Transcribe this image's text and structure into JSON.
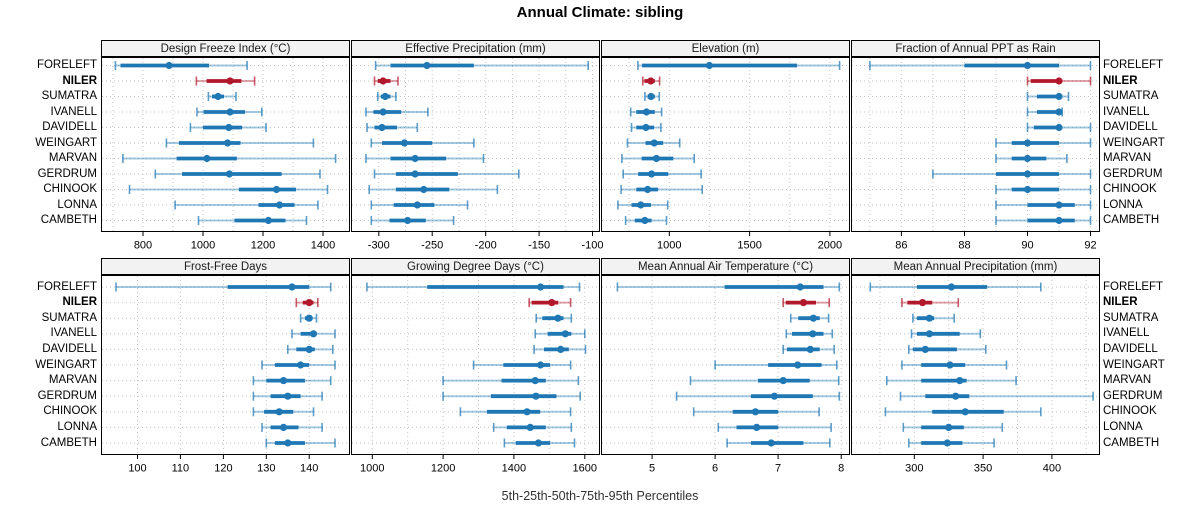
{
  "title": "Annual Climate: sibling",
  "footer": "5th-25th-50th-75th-95th Percentiles",
  "locations": [
    "FORELEFT",
    "NILER",
    "SUMATRA",
    "IVANELL",
    "DAVIDELL",
    "WEINGART",
    "MARVAN",
    "GERDRUM",
    "CHINOOK",
    "LONNA",
    "CAMBETH"
  ],
  "highlighted_location": "NILER",
  "colors": {
    "series_blue": "#1F77B4",
    "highlight_red": "#B2182B",
    "grid": "#C3C3C3",
    "strip_bg": "#F2F2F2",
    "panel_border": "#000000",
    "caption_text": "#303030"
  },
  "chart_data": {
    "type": "scatter",
    "variant": "percentile-range-dotplot-trellis",
    "percentiles": [
      5,
      25,
      50,
      75,
      95
    ],
    "categories": [
      "FORELEFT",
      "NILER",
      "SUMATRA",
      "IVANELL",
      "DAVIDELL",
      "WEINGART",
      "MARVAN",
      "GERDRUM",
      "CHINOOK",
      "LONNA",
      "CAMBETH"
    ],
    "layout": {
      "rows": 2,
      "cols": 4,
      "grid": "dotted",
      "legend": "none",
      "row_labels": "both-sides"
    },
    "panels": [
      {
        "title": "Design Freeze Index (°C)",
        "row": 0,
        "col": 0,
        "xlim": [
          660,
          1490
        ],
        "grid_at": [
          700,
          800,
          900,
          1000,
          1100,
          1200,
          1300,
          1400
        ],
        "ticks": [
          800,
          1000,
          1200,
          1400
        ],
        "series": {
          "FORELEFT": [
            708,
            725,
            887,
            1020,
            1147
          ],
          "NILER": [
            978,
            1012,
            1090,
            1128,
            1172
          ],
          "SUMATRA": [
            1018,
            1030,
            1050,
            1070,
            1110
          ],
          "IVANELL": [
            980,
            1002,
            1090,
            1140,
            1196
          ],
          "DAVIDELL": [
            958,
            1000,
            1086,
            1130,
            1210
          ],
          "WEINGART": [
            878,
            920,
            1082,
            1125,
            1368
          ],
          "MARVAN": [
            733,
            912,
            1013,
            1113,
            1442
          ],
          "GERDRUM": [
            841,
            930,
            1088,
            1262,
            1390
          ],
          "CHINOOK": [
            755,
            1120,
            1245,
            1310,
            1415
          ],
          "LONNA": [
            907,
            1185,
            1255,
            1305,
            1383
          ],
          "CAMBETH": [
            985,
            1105,
            1218,
            1275,
            1345
          ]
        }
      },
      {
        "title": "Effective Precipitation (mm)",
        "row": 0,
        "col": 1,
        "xlim": [
          -326,
          -93
        ],
        "grid_at": [
          -300,
          -275,
          -250,
          -225,
          -200,
          -175,
          -150,
          -125,
          -100
        ],
        "ticks": [
          -300,
          -250,
          -200,
          -150,
          -100
        ],
        "series": {
          "FORELEFT": [
            -303,
            -289,
            -255,
            -211,
            -104
          ],
          "NILER": [
            -304,
            -301,
            -296,
            -289,
            -282
          ],
          "SUMATRA": [
            -301,
            -298,
            -294,
            -289,
            -284
          ],
          "IVANELL": [
            -312,
            -305,
            -296,
            -279,
            -254
          ],
          "DAVIDELL": [
            -311,
            -304,
            -297,
            -283,
            -264
          ],
          "WEINGART": [
            -307,
            -297,
            -276,
            -250,
            -211
          ],
          "MARVAN": [
            -312,
            -289,
            -266,
            -237,
            -202
          ],
          "GERDRUM": [
            -304,
            -284,
            -266,
            -226,
            -169
          ],
          "CHINOOK": [
            -309,
            -284,
            -258,
            -234,
            -189
          ],
          "LONNA": [
            -307,
            -286,
            -264,
            -248,
            -217
          ],
          "CAMBETH": [
            -307,
            -290,
            -273,
            -256,
            -230
          ]
        }
      },
      {
        "title": "Elevation (m)",
        "row": 0,
        "col": 2,
        "xlim": [
          575,
          2125
        ],
        "grid_at": [
          750,
          1000,
          1250,
          1500,
          1750,
          2000
        ],
        "ticks": [
          1000,
          1500,
          2000
        ],
        "series": {
          "FORELEFT": [
            805,
            830,
            1250,
            1795,
            2060
          ],
          "NILER": [
            835,
            845,
            885,
            910,
            940
          ],
          "SUMATRA": [
            848,
            865,
            886,
            910,
            938
          ],
          "IVANELL": [
            760,
            795,
            858,
            910,
            952
          ],
          "DAVIDELL": [
            765,
            795,
            855,
            905,
            948
          ],
          "WEINGART": [
            740,
            852,
            906,
            962,
            1065
          ],
          "MARVAN": [
            705,
            828,
            920,
            1025,
            1155
          ],
          "GERDRUM": [
            713,
            806,
            890,
            994,
            1198
          ],
          "CHINOOK": [
            700,
            795,
            865,
            930,
            1205
          ],
          "LONNA": [
            680,
            765,
            823,
            886,
            990
          ],
          "CAMBETH": [
            728,
            786,
            848,
            890,
            983
          ]
        }
      },
      {
        "title": "Fraction of Annual PPT as Rain",
        "row": 0,
        "col": 3,
        "xlim": [
          84.4,
          92.3
        ],
        "grid_at": [
          85,
          86,
          87,
          88,
          89,
          90,
          91,
          92
        ],
        "ticks": [
          86,
          88,
          90,
          92
        ],
        "series": {
          "FORELEFT": [
            85,
            88,
            90,
            91,
            92
          ],
          "NILER": [
            90,
            90.1,
            91,
            91.1,
            92
          ],
          "SUMATRA": [
            90,
            90.3,
            91,
            91.1,
            91.3
          ],
          "IVANELL": [
            90,
            90.3,
            91,
            91.05,
            91.1
          ],
          "DAVIDELL": [
            90,
            90.2,
            91,
            91.1,
            92
          ],
          "WEINGART": [
            89,
            89.5,
            90,
            91,
            92
          ],
          "MARVAN": [
            89,
            89.5,
            90,
            90.6,
            91.25
          ],
          "GERDRUM": [
            87,
            89,
            90,
            91,
            92
          ],
          "CHINOOK": [
            89,
            89.5,
            90,
            91,
            92
          ],
          "LONNA": [
            89,
            90,
            91,
            91.5,
            92
          ],
          "CAMBETH": [
            89,
            90,
            91,
            91.5,
            92
          ]
        }
      },
      {
        "title": "Frost-Free Days",
        "row": 1,
        "col": 0,
        "xlim": [
          91.5,
          149.5
        ],
        "grid_at": [
          100,
          110,
          120,
          130,
          140
        ],
        "ticks": [
          100,
          110,
          120,
          130,
          140
        ],
        "series": {
          "FORELEFT": [
            95,
            121,
            136,
            140,
            145
          ],
          "NILER": [
            137,
            138.5,
            140,
            141,
            142
          ],
          "SUMATRA": [
            138,
            139,
            140,
            140.7,
            141.7
          ],
          "IVANELL": [
            136,
            138,
            141,
            141.6,
            146
          ],
          "DAVIDELL": [
            135,
            137,
            140,
            141.3,
            145.5
          ],
          "WEINGART": [
            129,
            132,
            138,
            140,
            146
          ],
          "MARVAN": [
            127,
            130,
            134,
            139,
            145
          ],
          "GERDRUM": [
            127,
            131,
            135,
            138,
            143
          ],
          "CHINOOK": [
            127,
            129.5,
            133,
            136.3,
            141
          ],
          "LONNA": [
            129,
            131,
            134,
            137.5,
            143
          ],
          "CAMBETH": [
            130,
            132,
            135,
            139,
            146
          ]
        }
      },
      {
        "title": "Growing Degree Days (°C)",
        "row": 1,
        "col": 1,
        "xlim": [
          940,
          1643
        ],
        "grid_at": [
          1000,
          1100,
          1200,
          1300,
          1400,
          1500,
          1600
        ],
        "ticks": [
          1000,
          1200,
          1400,
          1600
        ],
        "series": {
          "FORELEFT": [
            985,
            1155,
            1475,
            1540,
            1585
          ],
          "NILER": [
            1443,
            1450,
            1507,
            1525,
            1560
          ],
          "SUMATRA": [
            1463,
            1480,
            1524,
            1540,
            1562
          ],
          "IVANELL": [
            1460,
            1495,
            1545,
            1562,
            1600
          ],
          "DAVIDELL": [
            1457,
            1485,
            1532,
            1555,
            1602
          ],
          "WEINGART": [
            1286,
            1370,
            1475,
            1502,
            1560
          ],
          "MARVAN": [
            1200,
            1365,
            1460,
            1490,
            1582
          ],
          "GERDRUM": [
            1200,
            1335,
            1462,
            1520,
            1587
          ],
          "CHINOOK": [
            1249,
            1324,
            1437,
            1474,
            1560
          ],
          "LONNA": [
            1343,
            1380,
            1446,
            1490,
            1562
          ],
          "CAMBETH": [
            1373,
            1405,
            1469,
            1502,
            1571
          ]
        }
      },
      {
        "title": "Mean Annual Air Temperature (°C)",
        "row": 1,
        "col": 2,
        "xlim": [
          4.19,
          8.14
        ],
        "grid_at": [
          5,
          6,
          7,
          8
        ],
        "ticks": [
          5,
          6,
          7,
          8
        ],
        "series": {
          "FORELEFT": [
            4.45,
            6.15,
            7.35,
            7.72,
            7.97
          ],
          "NILER": [
            7.08,
            7.12,
            7.4,
            7.6,
            7.81
          ],
          "SUMATRA": [
            7.2,
            7.32,
            7.56,
            7.66,
            7.8
          ],
          "IVANELL": [
            7.13,
            7.22,
            7.55,
            7.72,
            7.86
          ],
          "DAVIDELL": [
            7.08,
            7.14,
            7.51,
            7.66,
            7.89
          ],
          "WEINGART": [
            6.0,
            6.84,
            7.31,
            7.69,
            7.93
          ],
          "MARVAN": [
            5.61,
            6.68,
            7.08,
            7.5,
            7.96
          ],
          "GERDRUM": [
            5.39,
            6.57,
            6.94,
            7.55,
            7.97
          ],
          "CHINOOK": [
            5.66,
            6.28,
            6.64,
            7.0,
            7.65
          ],
          "LONNA": [
            6.05,
            6.34,
            6.66,
            7.0,
            7.84
          ],
          "CAMBETH": [
            6.19,
            6.57,
            6.89,
            7.4,
            7.82
          ]
        }
      },
      {
        "title": "Mean Annual Precipitation (mm)",
        "row": 1,
        "col": 3,
        "xlim": [
          254,
          435
        ],
        "grid_at": [
          275,
          300,
          325,
          350,
          375,
          400,
          425
        ],
        "ticks": [
          300,
          350,
          400
        ],
        "series": {
          "FORELEFT": [
            268,
            302,
            327,
            353,
            392
          ],
          "NILER": [
            291,
            295,
            306,
            313,
            332
          ],
          "SUMATRA": [
            299,
            302,
            311,
            314.5,
            329
          ],
          "IVANELL": [
            298,
            302,
            311,
            333,
            348
          ],
          "DAVIDELL": [
            296,
            299,
            308,
            331,
            352
          ],
          "WEINGART": [
            291,
            305,
            326,
            337,
            367
          ],
          "MARVAN": [
            280,
            305,
            333,
            338,
            374
          ],
          "GERDRUM": [
            290,
            308,
            330,
            340,
            430
          ],
          "CHINOOK": [
            279,
            313,
            337,
            365,
            392
          ],
          "LONNA": [
            292,
            305,
            325,
            336,
            364
          ],
          "CAMBETH": [
            296,
            305,
            324,
            335,
            358
          ]
        }
      }
    ]
  }
}
